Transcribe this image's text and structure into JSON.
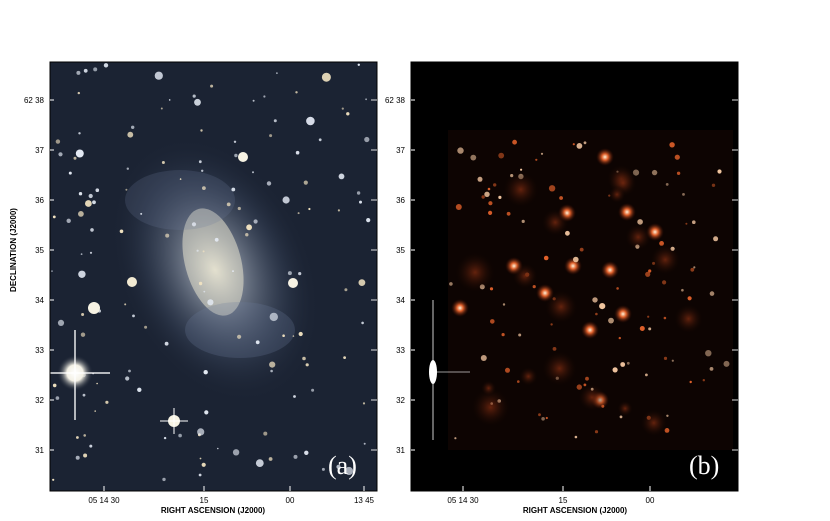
{
  "panels": [
    {
      "id": "a",
      "label": "(a)",
      "y_ticks": [
        "62 38",
        "37",
        "36",
        "35",
        "34",
        "33",
        "32",
        "31"
      ],
      "x_ticks": [
        "05 14 30",
        "15",
        "00",
        "13 45"
      ],
      "x_axis_label": "RIGHT ASCENSION (J2000)",
      "y_axis_label": "DECLINATION (J2000)",
      "image_desc": "Optical color image of a spiral galaxy with many foreground stars on a dark blue sky"
    },
    {
      "id": "b",
      "label": "(b)",
      "y_ticks": [
        "62 38",
        "37",
        "36",
        "35",
        "34",
        "33",
        "32",
        "31"
      ],
      "x_ticks": [
        "05 14 30",
        "15",
        "00"
      ],
      "x_axis_label": "RIGHT ASCENSION (J2000)",
      "image_desc": "Continuum-subtracted emission image with red HII regions on a black background"
    }
  ],
  "colors": {
    "panel_a_sky": "#1b2333",
    "panel_b_bg": "#000000",
    "hii_emission": "#e0602a"
  }
}
